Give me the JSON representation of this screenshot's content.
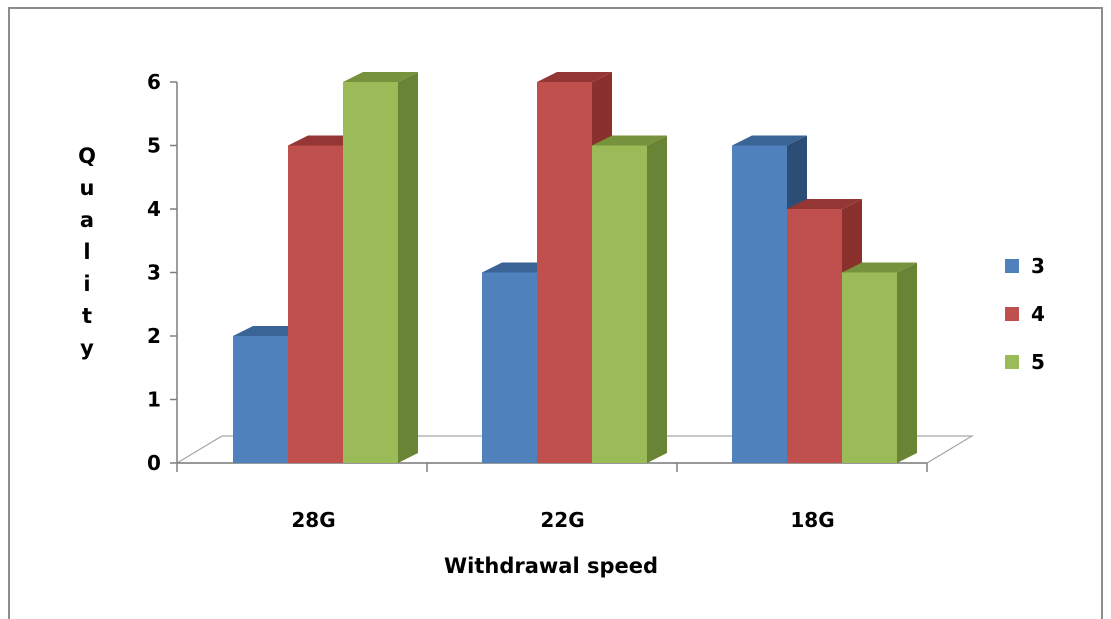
{
  "chart_data": {
    "type": "bar",
    "title": "",
    "xlabel": "Withdrawal speed",
    "ylabel": "Quality",
    "ylim": [
      0,
      6
    ],
    "yticks": [
      0,
      1,
      2,
      3,
      4,
      5,
      6
    ],
    "categories": [
      "28G",
      "22G",
      "18G"
    ],
    "series": [
      {
        "name": "3",
        "values": [
          2,
          3,
          5
        ],
        "color": "#4f81bd",
        "top_color": "#3a6496",
        "side_color": "#2c4d75"
      },
      {
        "name": "4",
        "values": [
          5,
          6,
          4
        ],
        "color": "#c0504d",
        "top_color": "#943634",
        "side_color": "#8a302d"
      },
      {
        "name": "5",
        "values": [
          6,
          5,
          3
        ],
        "color": "#9bbb59",
        "top_color": "#76923c",
        "side_color": "#6a8436"
      }
    ],
    "legend_position": "right",
    "grid": false,
    "style": "3d-clustered-column"
  }
}
